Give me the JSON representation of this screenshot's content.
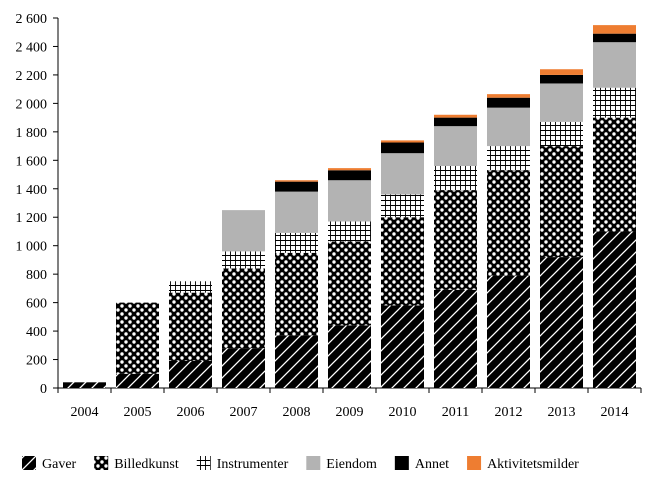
{
  "chart_data": {
    "type": "bar",
    "stacked": true,
    "title": "",
    "xlabel": "",
    "ylabel": "",
    "ylim": [
      0,
      2600
    ],
    "y_ticks": [
      0,
      200,
      400,
      600,
      800,
      1000,
      1200,
      1400,
      1600,
      1800,
      2000,
      2200,
      2400,
      2600
    ],
    "y_tick_labels": [
      "0",
      "200",
      "400",
      "600",
      "800",
      "1 000",
      "1 200",
      "1 400",
      "1 600",
      "1 800",
      "2 000",
      "2 200",
      "2 400",
      "2 600"
    ],
    "categories": [
      "2004",
      "2005",
      "2006",
      "2007",
      "2008",
      "2009",
      "2010",
      "2011",
      "2012",
      "2013",
      "2014"
    ],
    "grid": false,
    "legend_position": "bottom",
    "series": [
      {
        "name": "Gaver",
        "fill": "diagonal-hatch",
        "color": "#000000",
        "values": [
          40,
          100,
          190,
          280,
          370,
          440,
          580,
          690,
          790,
          920,
          1100
        ]
      },
      {
        "name": "Billedkunst",
        "fill": "dots",
        "color": "#000000",
        "values": [
          0,
          500,
          480,
          560,
          580,
          590,
          620,
          700,
          740,
          780,
          800
        ]
      },
      {
        "name": "Instrumenter",
        "fill": "grid-hatch",
        "color": "#000000",
        "values": [
          0,
          0,
          80,
          120,
          140,
          140,
          160,
          170,
          170,
          170,
          210
        ]
      },
      {
        "name": "Eiendom",
        "fill": "solid",
        "color": "#b3b3b3",
        "values": [
          0,
          0,
          0,
          290,
          290,
          290,
          290,
          280,
          270,
          270,
          320
        ]
      },
      {
        "name": "Annet",
        "fill": "solid",
        "color": "#000000",
        "values": [
          0,
          0,
          0,
          0,
          70,
          70,
          75,
          60,
          70,
          60,
          60
        ]
      },
      {
        "name": "Aktivitetsmilder",
        "fill": "solid",
        "color": "#ee7d31",
        "values": [
          0,
          0,
          0,
          0,
          10,
          15,
          15,
          20,
          25,
          40,
          60
        ]
      }
    ]
  }
}
